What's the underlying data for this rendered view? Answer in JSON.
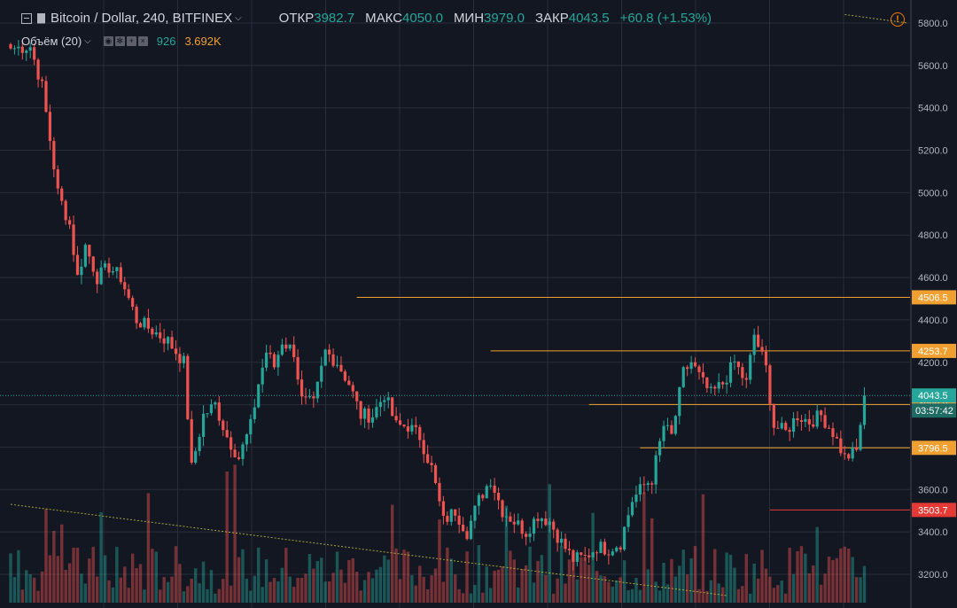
{
  "header": {
    "title": "Bitcoin / Dollar, 240, BITFINEX",
    "ohlc": [
      {
        "label": "ОТКР",
        "value": "3982.7"
      },
      {
        "label": "МАКС",
        "value": "4050.0"
      },
      {
        "label": "МИН",
        "value": "3979.0"
      },
      {
        "label": "ЗАКР",
        "value": "4043.5"
      }
    ],
    "change": "+60.8 (+1.53%)",
    "alert_symbol": "!"
  },
  "volume_header": {
    "title": "Объём (20)",
    "value": "926",
    "ma": "3.692K"
  },
  "colors": {
    "up": "#26a69a",
    "down": "#ef5350",
    "level": "#f0a030",
    "level_red": "#e53935",
    "background": "#131722"
  },
  "chart_data": {
    "type": "candlestick",
    "ylim": [
      3100,
      5850
    ],
    "y_ticks": [
      3200,
      3400,
      3600,
      3800,
      4000,
      4200,
      4400,
      4600,
      4800,
      5000,
      5200,
      5400,
      5600,
      5800
    ],
    "close_path": [
      [
        0,
        5680
      ],
      [
        5,
        5690
      ],
      [
        8,
        5500
      ],
      [
        12,
        5000
      ],
      [
        15,
        4850
      ],
      [
        17,
        4600
      ],
      [
        19,
        4750
      ],
      [
        22,
        4600
      ],
      [
        25,
        4650
      ],
      [
        28,
        4600
      ],
      [
        32,
        4400
      ],
      [
        36,
        4350
      ],
      [
        40,
        4300
      ],
      [
        44,
        4200
      ],
      [
        46,
        3700
      ],
      [
        49,
        3950
      ],
      [
        52,
        4000
      ],
      [
        55,
        3850
      ],
      [
        58,
        3750
      ],
      [
        61,
        3900
      ],
      [
        63,
        4100
      ],
      [
        65,
        4250
      ],
      [
        67,
        4180
      ],
      [
        69,
        4300
      ],
      [
        72,
        4250
      ],
      [
        74,
        4020
      ],
      [
        77,
        4000
      ],
      [
        80,
        4250
      ],
      [
        83,
        4200
      ],
      [
        86,
        4100
      ],
      [
        89,
        3950
      ],
      [
        92,
        3950
      ],
      [
        95,
        4050
      ],
      [
        98,
        3900
      ],
      [
        101,
        3900
      ],
      [
        104,
        3850
      ],
      [
        107,
        3700
      ],
      [
        110,
        3450
      ],
      [
        113,
        3500
      ],
      [
        116,
        3400
      ],
      [
        119,
        3550
      ],
      [
        122,
        3650
      ],
      [
        125,
        3500
      ],
      [
        128,
        3450
      ],
      [
        131,
        3400
      ],
      [
        134,
        3480
      ],
      [
        137,
        3450
      ],
      [
        140,
        3350
      ],
      [
        143,
        3270
      ],
      [
        146,
        3280
      ],
      [
        149,
        3330
      ],
      [
        152,
        3320
      ],
      [
        155,
        3350
      ],
      [
        158,
        3550
      ],
      [
        161,
        3620
      ],
      [
        163,
        3650
      ],
      [
        166,
        3900
      ],
      [
        168,
        3850
      ],
      [
        171,
        4150
      ],
      [
        173,
        4200
      ],
      [
        176,
        4100
      ],
      [
        178,
        4050
      ],
      [
        181,
        4100
      ],
      [
        184,
        4200
      ],
      [
        187,
        4100
      ],
      [
        189,
        4330
      ],
      [
        192,
        4170
      ],
      [
        194,
        3900
      ],
      [
        197,
        3870
      ],
      [
        200,
        3950
      ],
      [
        203,
        3920
      ],
      [
        206,
        3950
      ],
      [
        209,
        3870
      ],
      [
        212,
        3750
      ],
      [
        215,
        3780
      ],
      [
        217,
        4043.5
      ]
    ],
    "horizontal_levels": [
      {
        "value": 4506.5,
        "label": "4506.5",
        "start": 88,
        "color": "level"
      },
      {
        "value": 4253.7,
        "label": "4253.7",
        "start": 122,
        "color": "level"
      },
      {
        "value": 4000.8,
        "label": "4000.8",
        "start": 147,
        "color": "level"
      },
      {
        "value": 3796.5,
        "label": "3796.5",
        "start": 160,
        "color": "level"
      },
      {
        "value": 3503.7,
        "label": "3503.7",
        "start": 193,
        "color": "level_red"
      }
    ],
    "last_price": {
      "value": 4043.5,
      "label": "4043.5",
      "countdown": "03:57:42"
    },
    "trendlines": [
      {
        "from": [
          0,
          3530
        ],
        "to": [
          182,
          3100
        ]
      },
      {
        "from": [
          212,
          5840
        ],
        "to": [
          228,
          5800
        ]
      }
    ],
    "volume": {
      "ma_label": "3.692K",
      "last": "926"
    }
  }
}
